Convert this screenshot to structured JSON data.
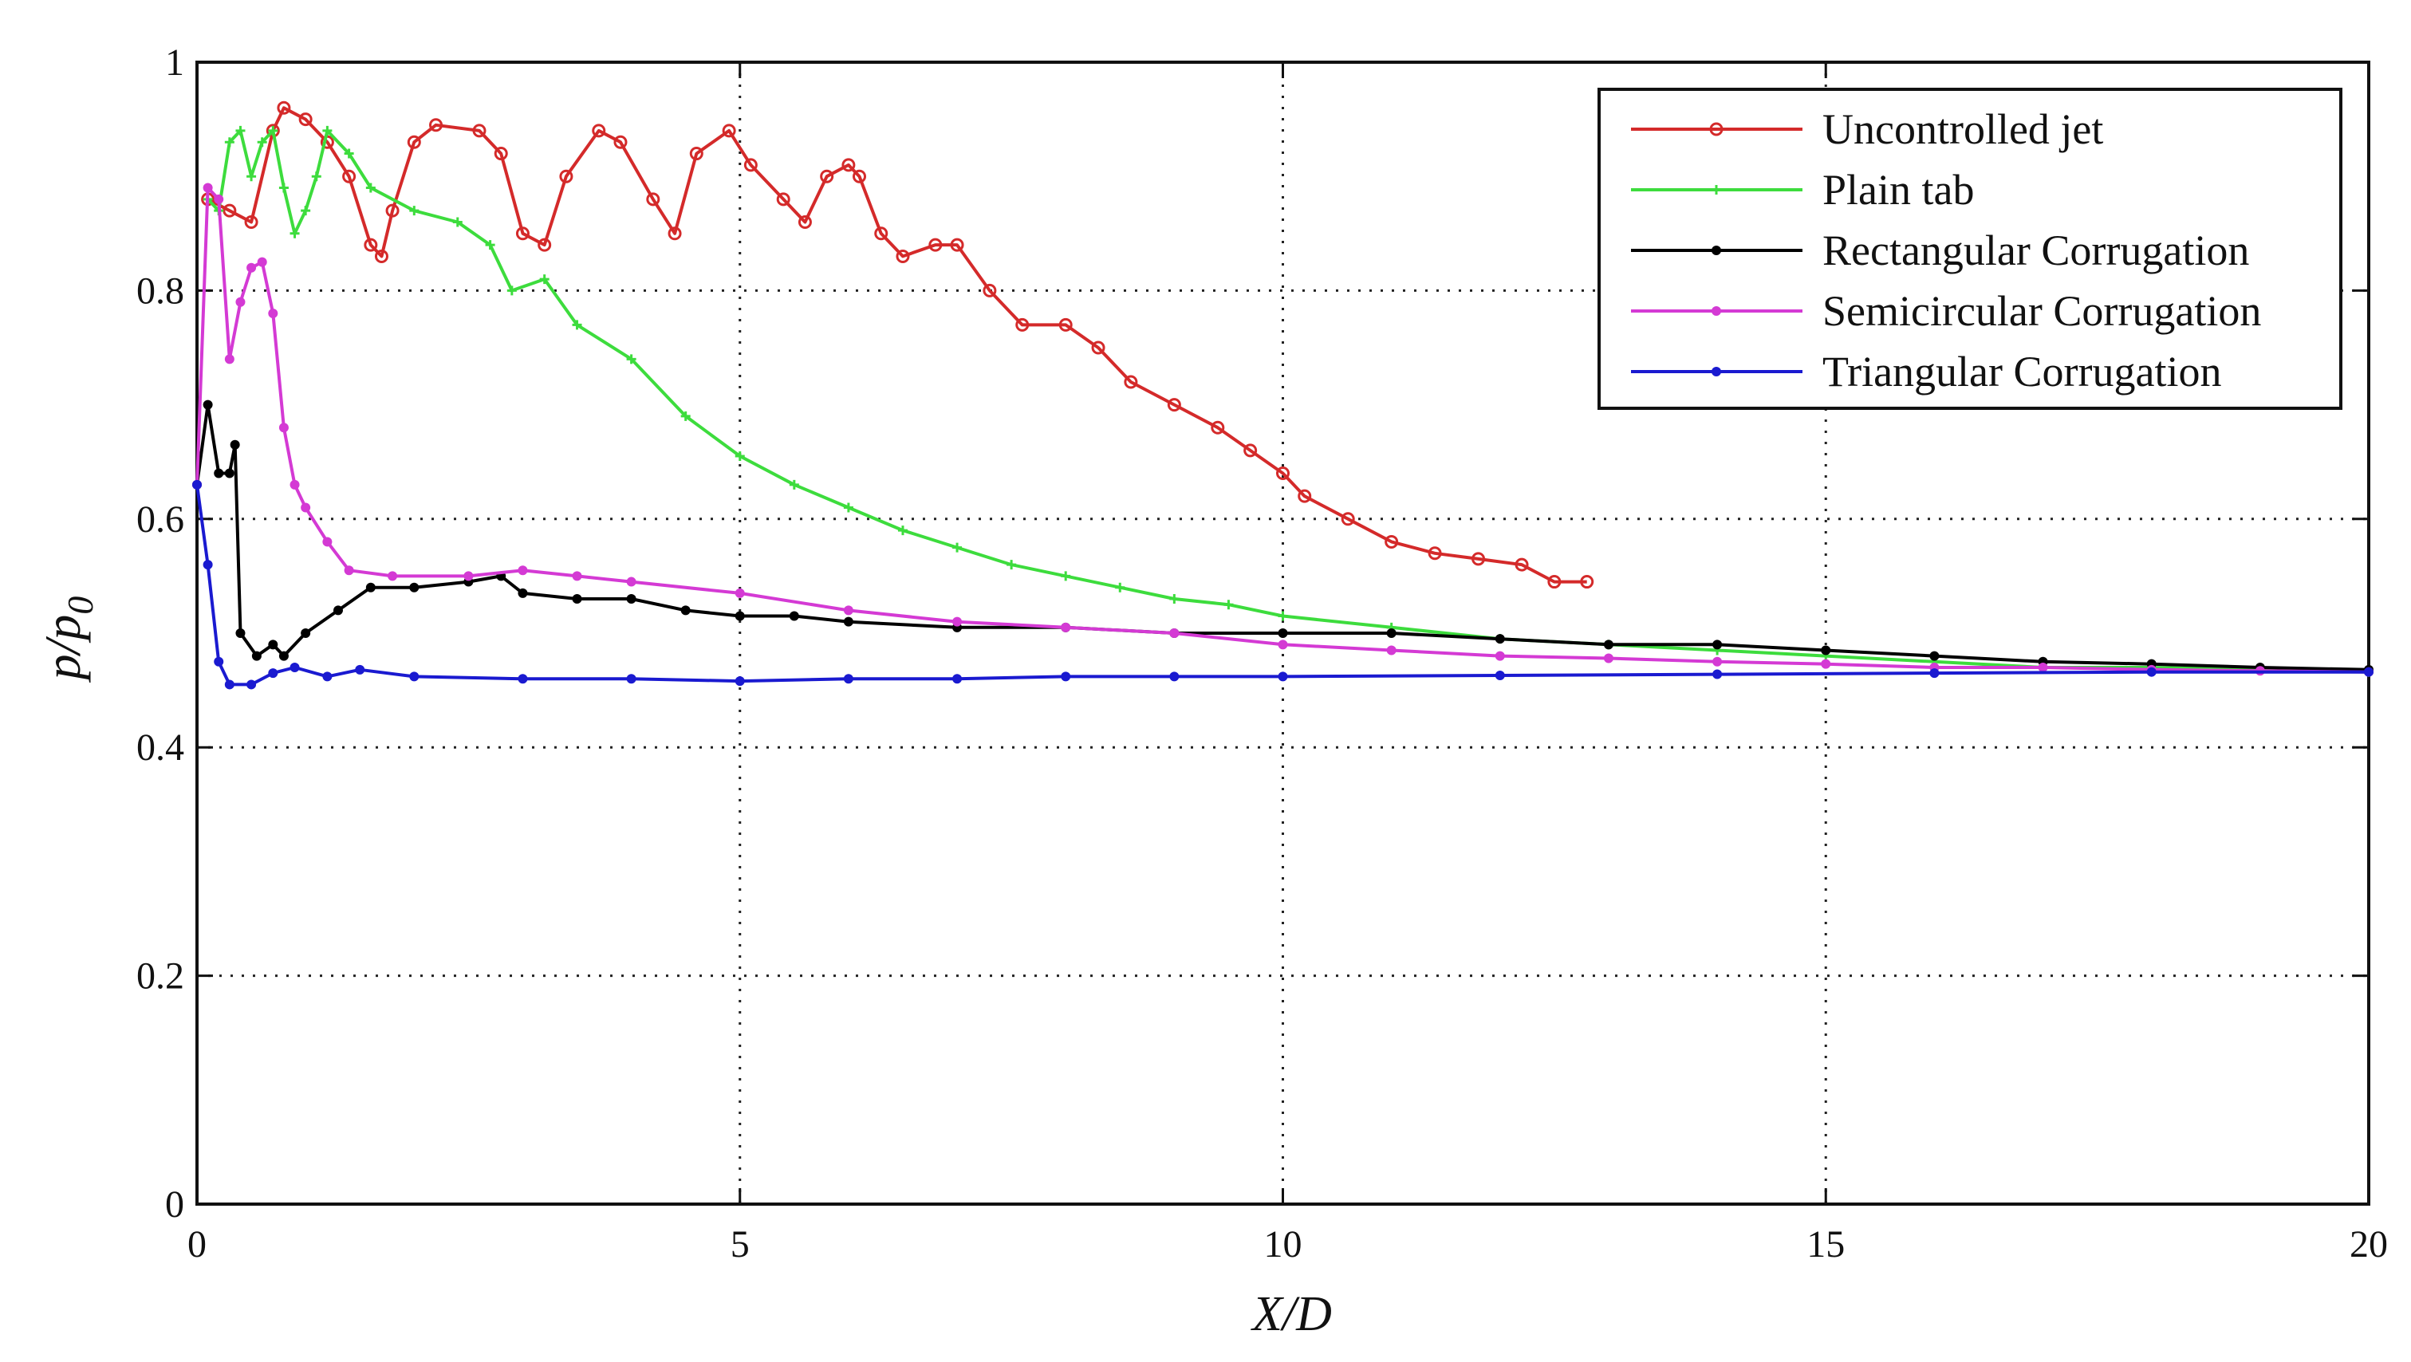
{
  "chart_data": {
    "type": "line",
    "xlabel": "X/D",
    "ylabel": [
      "p/p",
      "0"
    ],
    "xlim": [
      0,
      20
    ],
    "ylim": [
      0,
      1
    ],
    "xticks": [
      0,
      5,
      10,
      15,
      20
    ],
    "yticks": [
      0,
      0.2,
      0.4,
      0.6,
      0.8,
      1
    ],
    "grid": true,
    "legend_loc": "upper right",
    "series": [
      {
        "name": "Uncontrolled jet",
        "color": "#d42a2a",
        "marker": "open-circle",
        "x": [
          0.1,
          0.3,
          0.5,
          0.7,
          0.8,
          1.0,
          1.2,
          1.4,
          1.6,
          1.7,
          1.8,
          2.0,
          2.2,
          2.6,
          2.8,
          3.0,
          3.2,
          3.4,
          3.7,
          3.9,
          4.2,
          4.4,
          4.6,
          4.9,
          5.1,
          5.4,
          5.6,
          5.8,
          6.0,
          6.1,
          6.3,
          6.5,
          6.8,
          7.0,
          7.3,
          7.6,
          8.0,
          8.3,
          8.6,
          9.0,
          9.4,
          9.7,
          10.0,
          10.2,
          10.6,
          11.0,
          11.4,
          11.8,
          12.2,
          12.5,
          12.8
        ],
        "values": [
          0.88,
          0.87,
          0.86,
          0.94,
          0.96,
          0.95,
          0.93,
          0.9,
          0.84,
          0.83,
          0.87,
          0.93,
          0.945,
          0.94,
          0.92,
          0.85,
          0.84,
          0.9,
          0.94,
          0.93,
          0.88,
          0.85,
          0.92,
          0.94,
          0.91,
          0.88,
          0.86,
          0.9,
          0.91,
          0.9,
          0.85,
          0.83,
          0.84,
          0.84,
          0.8,
          0.77,
          0.77,
          0.75,
          0.72,
          0.7,
          0.68,
          0.66,
          0.64,
          0.62,
          0.6,
          0.58,
          0.57,
          0.565,
          0.56,
          0.545,
          0.545
        ]
      },
      {
        "name": "Plain tab",
        "color": "#3ddc3d",
        "marker": "plus",
        "x": [
          0.1,
          0.2,
          0.3,
          0.4,
          0.5,
          0.6,
          0.7,
          0.8,
          0.9,
          1.0,
          1.1,
          1.2,
          1.4,
          1.6,
          2.0,
          2.4,
          2.7,
          2.9,
          3.2,
          3.5,
          4.0,
          4.5,
          5.0,
          5.5,
          6.0,
          6.5,
          7.0,
          7.5,
          8.0,
          8.5,
          9.0,
          9.5,
          10.0,
          11.0,
          12.0,
          13.0,
          14.0,
          15.0,
          16.0,
          17.0,
          18.0,
          19.0,
          20.0
        ],
        "values": [
          0.88,
          0.87,
          0.93,
          0.94,
          0.9,
          0.93,
          0.94,
          0.89,
          0.85,
          0.87,
          0.9,
          0.94,
          0.92,
          0.89,
          0.87,
          0.86,
          0.84,
          0.8,
          0.81,
          0.77,
          0.74,
          0.69,
          0.655,
          0.63,
          0.61,
          0.59,
          0.575,
          0.56,
          0.55,
          0.54,
          0.53,
          0.525,
          0.515,
          0.505,
          0.495,
          0.49,
          0.485,
          0.48,
          0.475,
          0.47,
          0.47,
          0.468,
          0.466
        ]
      },
      {
        "name": "Rectangular Corrugation",
        "color": "#000000",
        "marker": "dot",
        "x": [
          0,
          0.1,
          0.2,
          0.3,
          0.35,
          0.4,
          0.55,
          0.7,
          0.8,
          1.0,
          1.3,
          1.6,
          2.0,
          2.5,
          2.8,
          3.0,
          3.5,
          4.0,
          4.5,
          5.0,
          5.5,
          6.0,
          7.0,
          8.0,
          9.0,
          10.0,
          11.0,
          12.0,
          13.0,
          14.0,
          15.0,
          16.0,
          17.0,
          18.0,
          19.0,
          20.0
        ],
        "values": [
          0.63,
          0.7,
          0.64,
          0.64,
          0.665,
          0.5,
          0.48,
          0.49,
          0.48,
          0.5,
          0.52,
          0.54,
          0.54,
          0.545,
          0.55,
          0.535,
          0.53,
          0.53,
          0.52,
          0.515,
          0.515,
          0.51,
          0.505,
          0.505,
          0.5,
          0.5,
          0.5,
          0.495,
          0.49,
          0.49,
          0.485,
          0.48,
          0.475,
          0.473,
          0.47,
          0.468
        ]
      },
      {
        "name": "Semicircular Corrugation",
        "color": "#d43ad4",
        "marker": "dot",
        "x": [
          0,
          0.1,
          0.2,
          0.3,
          0.4,
          0.5,
          0.6,
          0.7,
          0.8,
          0.9,
          1.0,
          1.2,
          1.4,
          1.8,
          2.5,
          3.0,
          3.5,
          4.0,
          5.0,
          6.0,
          7.0,
          8.0,
          9.0,
          10.0,
          11.0,
          12.0,
          13.0,
          14.0,
          15.0,
          16.0,
          17.0,
          18.0,
          19.0,
          20.0
        ],
        "values": [
          0.63,
          0.89,
          0.88,
          0.74,
          0.79,
          0.82,
          0.825,
          0.78,
          0.68,
          0.63,
          0.61,
          0.58,
          0.555,
          0.55,
          0.55,
          0.555,
          0.55,
          0.545,
          0.535,
          0.52,
          0.51,
          0.505,
          0.5,
          0.49,
          0.485,
          0.48,
          0.478,
          0.475,
          0.473,
          0.47,
          0.47,
          0.468,
          0.467,
          0.466
        ]
      },
      {
        "name": "Triangular Corrugation",
        "color": "#1a1ad0",
        "marker": "dot",
        "x": [
          0,
          0.1,
          0.2,
          0.3,
          0.5,
          0.7,
          0.9,
          1.2,
          1.5,
          2.0,
          3.0,
          4.0,
          5.0,
          6.0,
          7.0,
          8.0,
          9.0,
          10.0,
          12.0,
          14.0,
          16.0,
          18.0,
          20.0
        ],
        "values": [
          0.63,
          0.56,
          0.475,
          0.455,
          0.455,
          0.465,
          0.47,
          0.462,
          0.468,
          0.462,
          0.46,
          0.46,
          0.458,
          0.46,
          0.46,
          0.462,
          0.462,
          0.462,
          0.463,
          0.464,
          0.465,
          0.466,
          0.466
        ]
      }
    ]
  }
}
